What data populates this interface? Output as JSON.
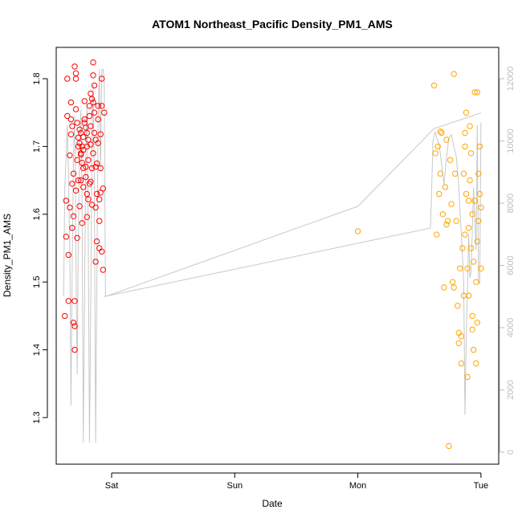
{
  "chart_data": {
    "type": "scatter",
    "title": "ATOM1 Northeast_Pacific Density_PM1_AMS",
    "xlabel": "Date",
    "ylabel": "Density_PM1_AMS",
    "x_ticks": [
      "Sat",
      "Sun",
      "Mon",
      "Tue"
    ],
    "y_ticks": [
      "1.3",
      "1.4",
      "1.5",
      "1.6",
      "1.7",
      "1.8"
    ],
    "y2_ticks": [
      "0",
      "2000",
      "4000",
      "6000",
      "8000",
      "10000",
      "12000"
    ],
    "ylim": [
      1.24,
      1.84
    ],
    "y2lim": [
      -300,
      12700
    ],
    "grid": false,
    "colors": {
      "series_1": "#ff0000",
      "series_2": "#ffa500",
      "line": "#c8c8c8",
      "right_axis": "#bdbdbd"
    },
    "series": [
      {
        "color": "#ff0000",
        "points": [
          [
            -0.38,
            1.45
          ],
          [
            -0.37,
            1.567
          ],
          [
            -0.37,
            1.62
          ],
          [
            -0.36,
            1.8
          ],
          [
            -0.36,
            1.745
          ],
          [
            -0.35,
            1.472
          ],
          [
            -0.35,
            1.54
          ],
          [
            -0.34,
            1.61
          ],
          [
            -0.34,
            1.687
          ],
          [
            -0.33,
            1.718
          ],
          [
            -0.33,
            1.74
          ],
          [
            -0.33,
            1.765
          ],
          [
            -0.32,
            1.73
          ],
          [
            -0.32,
            1.58
          ],
          [
            -0.32,
            1.645
          ],
          [
            -0.31,
            1.66
          ],
          [
            -0.31,
            1.597
          ],
          [
            -0.31,
            1.44
          ],
          [
            -0.3,
            1.435
          ],
          [
            -0.3,
            1.472
          ],
          [
            -0.3,
            1.4
          ],
          [
            -0.3,
            1.818
          ],
          [
            -0.29,
            1.808
          ],
          [
            -0.29,
            1.8
          ],
          [
            -0.29,
            1.755
          ],
          [
            -0.29,
            1.635
          ],
          [
            -0.28,
            1.735
          ],
          [
            -0.28,
            1.68
          ],
          [
            -0.28,
            1.565
          ],
          [
            -0.27,
            1.713
          ],
          [
            -0.27,
            1.7
          ],
          [
            -0.27,
            1.65
          ],
          [
            -0.26,
            1.725
          ],
          [
            -0.26,
            1.705
          ],
          [
            -0.26,
            1.612
          ],
          [
            -0.25,
            1.69
          ],
          [
            -0.25,
            1.72
          ],
          [
            -0.25,
            1.688
          ],
          [
            -0.25,
            1.65
          ],
          [
            -0.24,
            1.587
          ],
          [
            -0.24,
            1.7
          ],
          [
            -0.24,
            1.676
          ],
          [
            -0.23,
            1.714
          ],
          [
            -0.23,
            1.668
          ],
          [
            -0.23,
            1.695
          ],
          [
            -0.23,
            1.64
          ],
          [
            -0.22,
            1.735
          ],
          [
            -0.22,
            1.767
          ],
          [
            -0.22,
            1.74
          ],
          [
            -0.21,
            1.67
          ],
          [
            -0.21,
            1.728
          ],
          [
            -0.21,
            1.655
          ],
          [
            -0.2,
            1.63
          ],
          [
            -0.2,
            1.72
          ],
          [
            -0.2,
            1.596
          ],
          [
            -0.2,
            1.7
          ],
          [
            -0.19,
            1.68
          ],
          [
            -0.19,
            1.71
          ],
          [
            -0.19,
            1.622
          ],
          [
            -0.18,
            1.645
          ],
          [
            -0.18,
            1.745
          ],
          [
            -0.18,
            1.76
          ],
          [
            -0.17,
            1.73
          ],
          [
            -0.17,
            1.703
          ],
          [
            -0.17,
            1.648
          ],
          [
            -0.17,
            1.778
          ],
          [
            -0.16,
            1.668
          ],
          [
            -0.16,
            1.77
          ],
          [
            -0.16,
            1.614
          ],
          [
            -0.15,
            1.824
          ],
          [
            -0.15,
            1.805
          ],
          [
            -0.15,
            1.69
          ],
          [
            -0.15,
            1.765
          ],
          [
            -0.14,
            1.75
          ],
          [
            -0.14,
            1.79
          ],
          [
            -0.14,
            1.72
          ],
          [
            -0.13,
            1.71
          ],
          [
            -0.13,
            1.67
          ],
          [
            -0.13,
            1.61
          ],
          [
            -0.13,
            1.53
          ],
          [
            -0.12,
            1.56
          ],
          [
            -0.12,
            1.63
          ],
          [
            -0.12,
            1.675
          ],
          [
            -0.11,
            1.705
          ],
          [
            -0.11,
            1.76
          ],
          [
            -0.11,
            1.74
          ],
          [
            -0.1,
            1.59
          ],
          [
            -0.1,
            1.622
          ],
          [
            -0.1,
            1.55
          ],
          [
            -0.09,
            1.632
          ],
          [
            -0.09,
            1.668
          ],
          [
            -0.09,
            1.718
          ],
          [
            -0.08,
            1.545
          ],
          [
            -0.08,
            1.8
          ],
          [
            -0.08,
            1.76
          ],
          [
            -0.07,
            1.518
          ],
          [
            -0.07,
            1.638
          ],
          [
            -0.06,
            1.75
          ]
        ]
      },
      {
        "color": "#ffa500",
        "points": [
          [
            2.0,
            1.575
          ],
          [
            2.62,
            1.79
          ],
          [
            2.63,
            1.69
          ],
          [
            2.64,
            1.57
          ],
          [
            2.65,
            1.7
          ],
          [
            2.66,
            1.63
          ],
          [
            2.67,
            1.722
          ],
          [
            2.67,
            1.66
          ],
          [
            2.68,
            1.72
          ],
          [
            2.69,
            1.6
          ],
          [
            2.7,
            1.492
          ],
          [
            2.71,
            1.64
          ],
          [
            2.72,
            1.585
          ],
          [
            2.72,
            1.71
          ],
          [
            2.73,
            1.59
          ],
          [
            2.74,
            1.258
          ],
          [
            2.75,
            1.68
          ],
          [
            2.76,
            1.615
          ],
          [
            2.77,
            1.5
          ],
          [
            2.78,
            1.807
          ],
          [
            2.78,
            1.492
          ],
          [
            2.79,
            1.66
          ],
          [
            2.8,
            1.59
          ],
          [
            2.81,
            1.465
          ],
          [
            2.82,
            1.41
          ],
          [
            2.82,
            1.425
          ],
          [
            2.83,
            1.52
          ],
          [
            2.84,
            1.38
          ],
          [
            2.84,
            1.42
          ],
          [
            2.85,
            1.55
          ],
          [
            2.86,
            1.48
          ],
          [
            2.86,
            1.66
          ],
          [
            2.87,
            1.7
          ],
          [
            2.87,
            1.72
          ],
          [
            2.88,
            1.75
          ],
          [
            2.88,
            1.63
          ],
          [
            2.89,
            1.52
          ],
          [
            2.89,
            1.36
          ],
          [
            2.9,
            1.62
          ],
          [
            2.9,
            1.58
          ],
          [
            2.91,
            1.65
          ],
          [
            2.91,
            1.73
          ],
          [
            2.92,
            1.55
          ],
          [
            2.92,
            1.69
          ],
          [
            2.93,
            1.6
          ],
          [
            2.93,
            1.45
          ],
          [
            2.94,
            1.4
          ],
          [
            2.94,
            1.53
          ],
          [
            2.95,
            1.78
          ],
          [
            2.95,
            1.62
          ],
          [
            2.96,
            1.5
          ],
          [
            2.96,
            1.38
          ],
          [
            2.97,
            1.44
          ],
          [
            2.97,
            1.56
          ],
          [
            2.98,
            1.66
          ],
          [
            2.98,
            1.59
          ],
          [
            2.99,
            1.63
          ],
          [
            2.99,
            1.7
          ],
          [
            3.0,
            1.52
          ],
          [
            3.0,
            1.61
          ],
          [
            2.97,
            1.78
          ],
          [
            2.93,
            1.43
          ],
          [
            2.9,
            1.48
          ],
          [
            2.87,
            1.57
          ]
        ]
      }
    ],
    "line_series": {
      "axis": "right",
      "color": "#c8c8c8",
      "points": [
        [
          -0.39,
          5000
        ],
        [
          -0.38,
          8500
        ],
        [
          -0.36,
          10500
        ],
        [
          -0.35,
          9000
        ],
        [
          -0.34,
          6500
        ],
        [
          -0.33,
          1500
        ],
        [
          -0.32,
          6000
        ],
        [
          -0.31,
          9500
        ],
        [
          -0.3,
          10800
        ],
        [
          -0.29,
          6500
        ],
        [
          -0.28,
          2500
        ],
        [
          -0.27,
          7000
        ],
        [
          -0.26,
          10000
        ],
        [
          -0.25,
          11000
        ],
        [
          -0.24,
          8000
        ],
        [
          -0.23,
          300
        ],
        [
          -0.22,
          5000
        ],
        [
          -0.21,
          9500
        ],
        [
          -0.2,
          11200
        ],
        [
          -0.19,
          7000
        ],
        [
          -0.18,
          300
        ],
        [
          -0.17,
          4500
        ],
        [
          -0.16,
          10000
        ],
        [
          -0.15,
          11800
        ],
        [
          -0.14,
          8500
        ],
        [
          -0.13,
          300
        ],
        [
          -0.12,
          5500
        ],
        [
          -0.11,
          10500
        ],
        [
          -0.1,
          12300
        ],
        [
          -0.09,
          9000
        ],
        [
          -0.08,
          12300
        ],
        [
          -0.07,
          12300
        ],
        [
          -0.06,
          12000
        ],
        [
          -0.05,
          5000
        ],
        [
          2.0,
          7900
        ],
        [
          2.62,
          10400
        ],
        [
          3.0,
          10900
        ]
      ],
      "points_b": [
        [
          -0.06,
          5000
        ],
        [
          2.59,
          7200
        ],
        [
          2.6,
          8500
        ],
        [
          2.61,
          10000
        ],
        [
          2.63,
          10300
        ],
        [
          2.64,
          10100
        ],
        [
          2.66,
          9900
        ],
        [
          2.7,
          8600
        ],
        [
          2.72,
          9500
        ],
        [
          2.74,
          10100
        ],
        [
          2.76,
          10200
        ],
        [
          2.78,
          9800
        ],
        [
          2.8,
          9500
        ],
        [
          2.82,
          8500
        ],
        [
          2.84,
          7000
        ],
        [
          2.86,
          5500
        ],
        [
          2.87,
          1200
        ],
        [
          2.88,
          3500
        ],
        [
          2.89,
          5200
        ],
        [
          2.9,
          7000
        ],
        [
          2.91,
          5600
        ],
        [
          2.92,
          5800
        ],
        [
          2.93,
          7200
        ],
        [
          2.94,
          8500
        ],
        [
          2.95,
          7500
        ],
        [
          2.96,
          6500
        ],
        [
          2.97,
          10500
        ],
        [
          2.98,
          5500
        ],
        [
          2.99,
          5400
        ],
        [
          3.0,
          10600
        ]
      ]
    }
  }
}
